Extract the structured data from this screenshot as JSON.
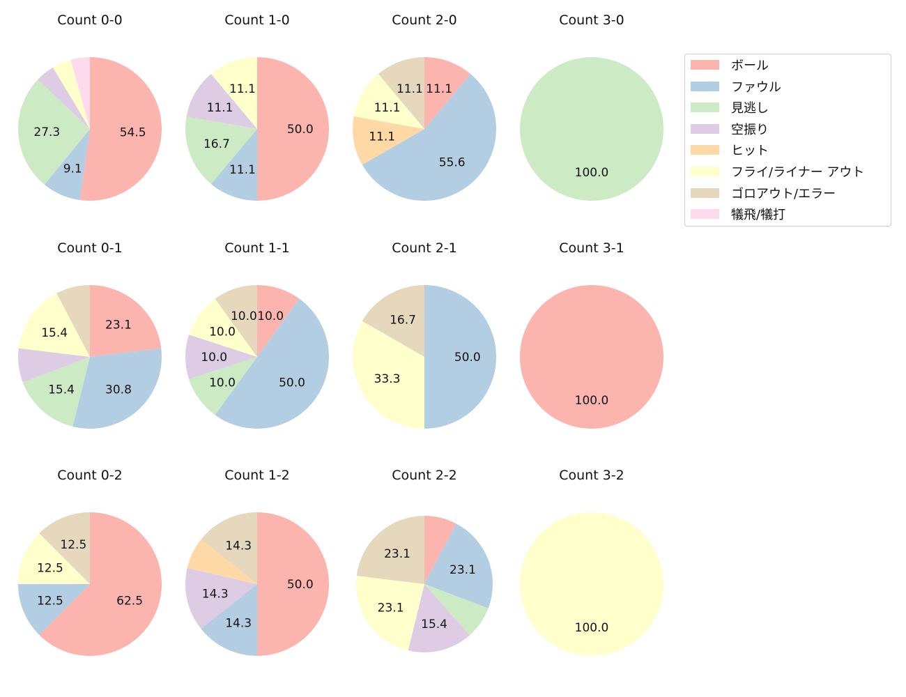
{
  "chart_data": {
    "type": "pie",
    "categories": [
      "ボール",
      "ファウル",
      "見逃し",
      "空振り",
      "ヒット",
      "フライ/ライナー アウト",
      "ゴロアウト/エラー",
      "犠飛/犠打"
    ],
    "colors": [
      "#fbb4ae",
      "#b3cde3",
      "#ccebc5",
      "#decbe4",
      "#fed9a6",
      "#ffffcc",
      "#e5d8bd",
      "#fddaec"
    ],
    "legend_position": "upper-right",
    "charts": [
      {
        "title": "Count 0-0",
        "values": [
          54.5,
          9.1,
          27.3,
          4.5,
          0,
          4.5,
          0,
          4.5
        ]
      },
      {
        "title": "Count 1-0",
        "values": [
          50.0,
          11.1,
          16.7,
          11.1,
          0,
          11.1,
          0,
          0
        ]
      },
      {
        "title": "Count 2-0",
        "values": [
          11.1,
          55.6,
          0,
          0,
          11.1,
          11.1,
          11.1,
          0
        ]
      },
      {
        "title": "Count 3-0",
        "values": [
          0,
          0,
          100.0,
          0,
          0,
          0,
          0,
          0
        ]
      },
      {
        "title": "Count 0-1",
        "values": [
          23.1,
          30.8,
          15.4,
          7.7,
          0,
          15.4,
          7.7,
          0
        ]
      },
      {
        "title": "Count 1-1",
        "values": [
          10.0,
          50.0,
          10.0,
          10.0,
          0,
          10.0,
          10.0,
          0
        ]
      },
      {
        "title": "Count 2-1",
        "values": [
          0,
          50.0,
          0,
          0,
          0,
          33.3,
          16.7,
          0
        ]
      },
      {
        "title": "Count 3-1",
        "values": [
          100.0,
          0,
          0,
          0,
          0,
          0,
          0,
          0
        ]
      },
      {
        "title": "Count 0-2",
        "values": [
          62.5,
          12.5,
          0,
          0,
          0,
          12.5,
          12.5,
          0
        ]
      },
      {
        "title": "Count 1-2",
        "values": [
          50.0,
          14.3,
          0,
          14.3,
          7.1,
          0,
          14.3,
          0
        ]
      },
      {
        "title": "Count 2-2",
        "values": [
          7.7,
          23.1,
          7.7,
          15.4,
          0,
          23.1,
          23.1,
          0
        ]
      },
      {
        "title": "Count 3-2",
        "values": [
          0,
          0,
          0,
          0,
          0,
          100.0,
          0,
          0
        ]
      }
    ]
  }
}
